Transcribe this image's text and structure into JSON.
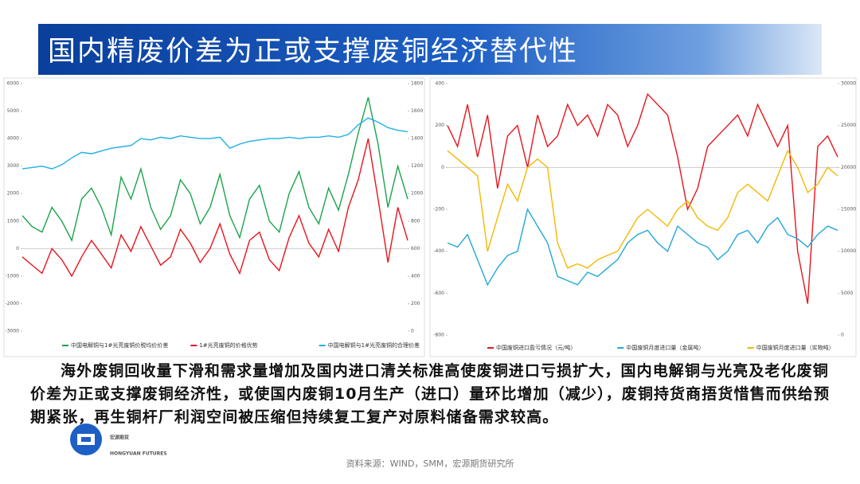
{
  "slide": {
    "title": "国内精废价差为正或支撑废铜经济替代性",
    "body": "海外废铜回收量下滑和需求量增加及国内进口清关标准高使废铜进口亏损扩大，国内电解铜与光亮及老化废铜价差为正或支撑废铜经济性，或使国内废铜10月生产（进口）量环比增加（减少），废铜持货商捂货惜售而供给预期紧张，再生铜杆厂利润空间被压缩但持续复工复产对原料储备需求较高。",
    "logo_cn": "宏源期货",
    "logo_en": "HONGYUAN FUTURES",
    "source": "资料来源：WIND，SMM，宏源期货研究所"
  },
  "chart_data": [
    {
      "type": "line",
      "ylim": [
        -3000,
        6000
      ],
      "yticks": [
        -3000,
        -2000,
        -1000,
        0,
        1000,
        2000,
        3000,
        4000,
        5000,
        6000
      ],
      "y2lim": [
        0,
        1800
      ],
      "y2ticks": [
        0,
        200,
        400,
        600,
        800,
        1000,
        1200,
        1400,
        1600,
        1800
      ],
      "legend": "bottom",
      "series": [
        {
          "name": "中国电解铜与1#光亮废铜价税均价价差",
          "color": "#1aa34a",
          "values": [
            1200,
            800,
            600,
            1500,
            1000,
            300,
            1800,
            2200,
            1500,
            500,
            2600,
            1800,
            2900,
            1500,
            700,
            1200,
            2500,
            2000,
            900,
            1500,
            2700,
            1200,
            400,
            1800,
            2300,
            1000,
            600,
            2000,
            2800,
            1500,
            900,
            2200,
            1400,
            2700,
            4200,
            5500,
            3800,
            1500,
            3000,
            1800
          ]
        },
        {
          "name": "1#光亮废铜的价格优势",
          "color": "#e8141c",
          "values": [
            -300,
            -600,
            -900,
            0,
            -400,
            -1000,
            -300,
            300,
            -200,
            -700,
            500,
            -100,
            800,
            100,
            -600,
            -300,
            700,
            200,
            -500,
            0,
            900,
            -200,
            -900,
            300,
            600,
            -400,
            -800,
            400,
            1200,
            200,
            -300,
            700,
            -100,
            1500,
            2500,
            4000,
            1800,
            -500,
            1500,
            300
          ]
        },
        {
          "name": "中国电解铜与1#光亮废铜的合理价差",
          "color": "#1fb0e6",
          "axis": "y2",
          "values": [
            1180,
            1190,
            1200,
            1180,
            1210,
            1260,
            1300,
            1290,
            1310,
            1330,
            1340,
            1350,
            1400,
            1390,
            1410,
            1400,
            1420,
            1410,
            1400,
            1400,
            1410,
            1330,
            1360,
            1380,
            1390,
            1400,
            1400,
            1410,
            1400,
            1410,
            1410,
            1420,
            1410,
            1430,
            1500,
            1550,
            1520,
            1480,
            1460,
            1450
          ]
        }
      ]
    },
    {
      "type": "line",
      "ylim": [
        -800,
        400
      ],
      "yticks": [
        -800,
        -600,
        -400,
        -200,
        0,
        200,
        400
      ],
      "y2lim": [
        0,
        30000
      ],
      "y2ticks": [
        0,
        5000,
        10000,
        15000,
        20000,
        25000,
        30000
      ],
      "legend": "bottom",
      "series": [
        {
          "name": "中国废铜进口盈亏情况（元/吨）",
          "color": "#e8141c",
          "values": [
            200,
            100,
            300,
            50,
            250,
            -100,
            150,
            200,
            0,
            250,
            100,
            150,
            300,
            200,
            250,
            150,
            300,
            250,
            100,
            200,
            350,
            300,
            250,
            50,
            -200,
            -100,
            100,
            150,
            200,
            250,
            150,
            300,
            200,
            100,
            200,
            -400,
            -650,
            100,
            150,
            50
          ]
        },
        {
          "name": "中国废铜月度进口量（金属吨）",
          "color": "#22a8d8",
          "axis": "y2",
          "values": [
            11000,
            10500,
            12000,
            9000,
            6000,
            8000,
            9500,
            10000,
            15000,
            13000,
            11000,
            7000,
            6500,
            6000,
            7500,
            7000,
            8000,
            9000,
            11000,
            12000,
            12500,
            11000,
            10000,
            13000,
            12000,
            11000,
            10500,
            9000,
            10000,
            12000,
            12500,
            11000,
            13000,
            14000,
            12000,
            11500,
            10500,
            12000,
            13000,
            12500
          ]
        },
        {
          "name": "中国废铜月度进口量（实物吨）",
          "color": "#f5b800",
          "axis": "y2",
          "values": [
            22000,
            21000,
            20000,
            19000,
            10000,
            14000,
            18000,
            16000,
            20000,
            21000,
            20000,
            11000,
            8000,
            8500,
            8000,
            9000,
            9500,
            10000,
            12000,
            14000,
            15000,
            14000,
            13000,
            15000,
            16000,
            14000,
            13000,
            12500,
            14000,
            17000,
            18000,
            17000,
            16000,
            19000,
            22000,
            20000,
            17000,
            18000,
            20000,
            19000
          ]
        }
      ]
    }
  ]
}
